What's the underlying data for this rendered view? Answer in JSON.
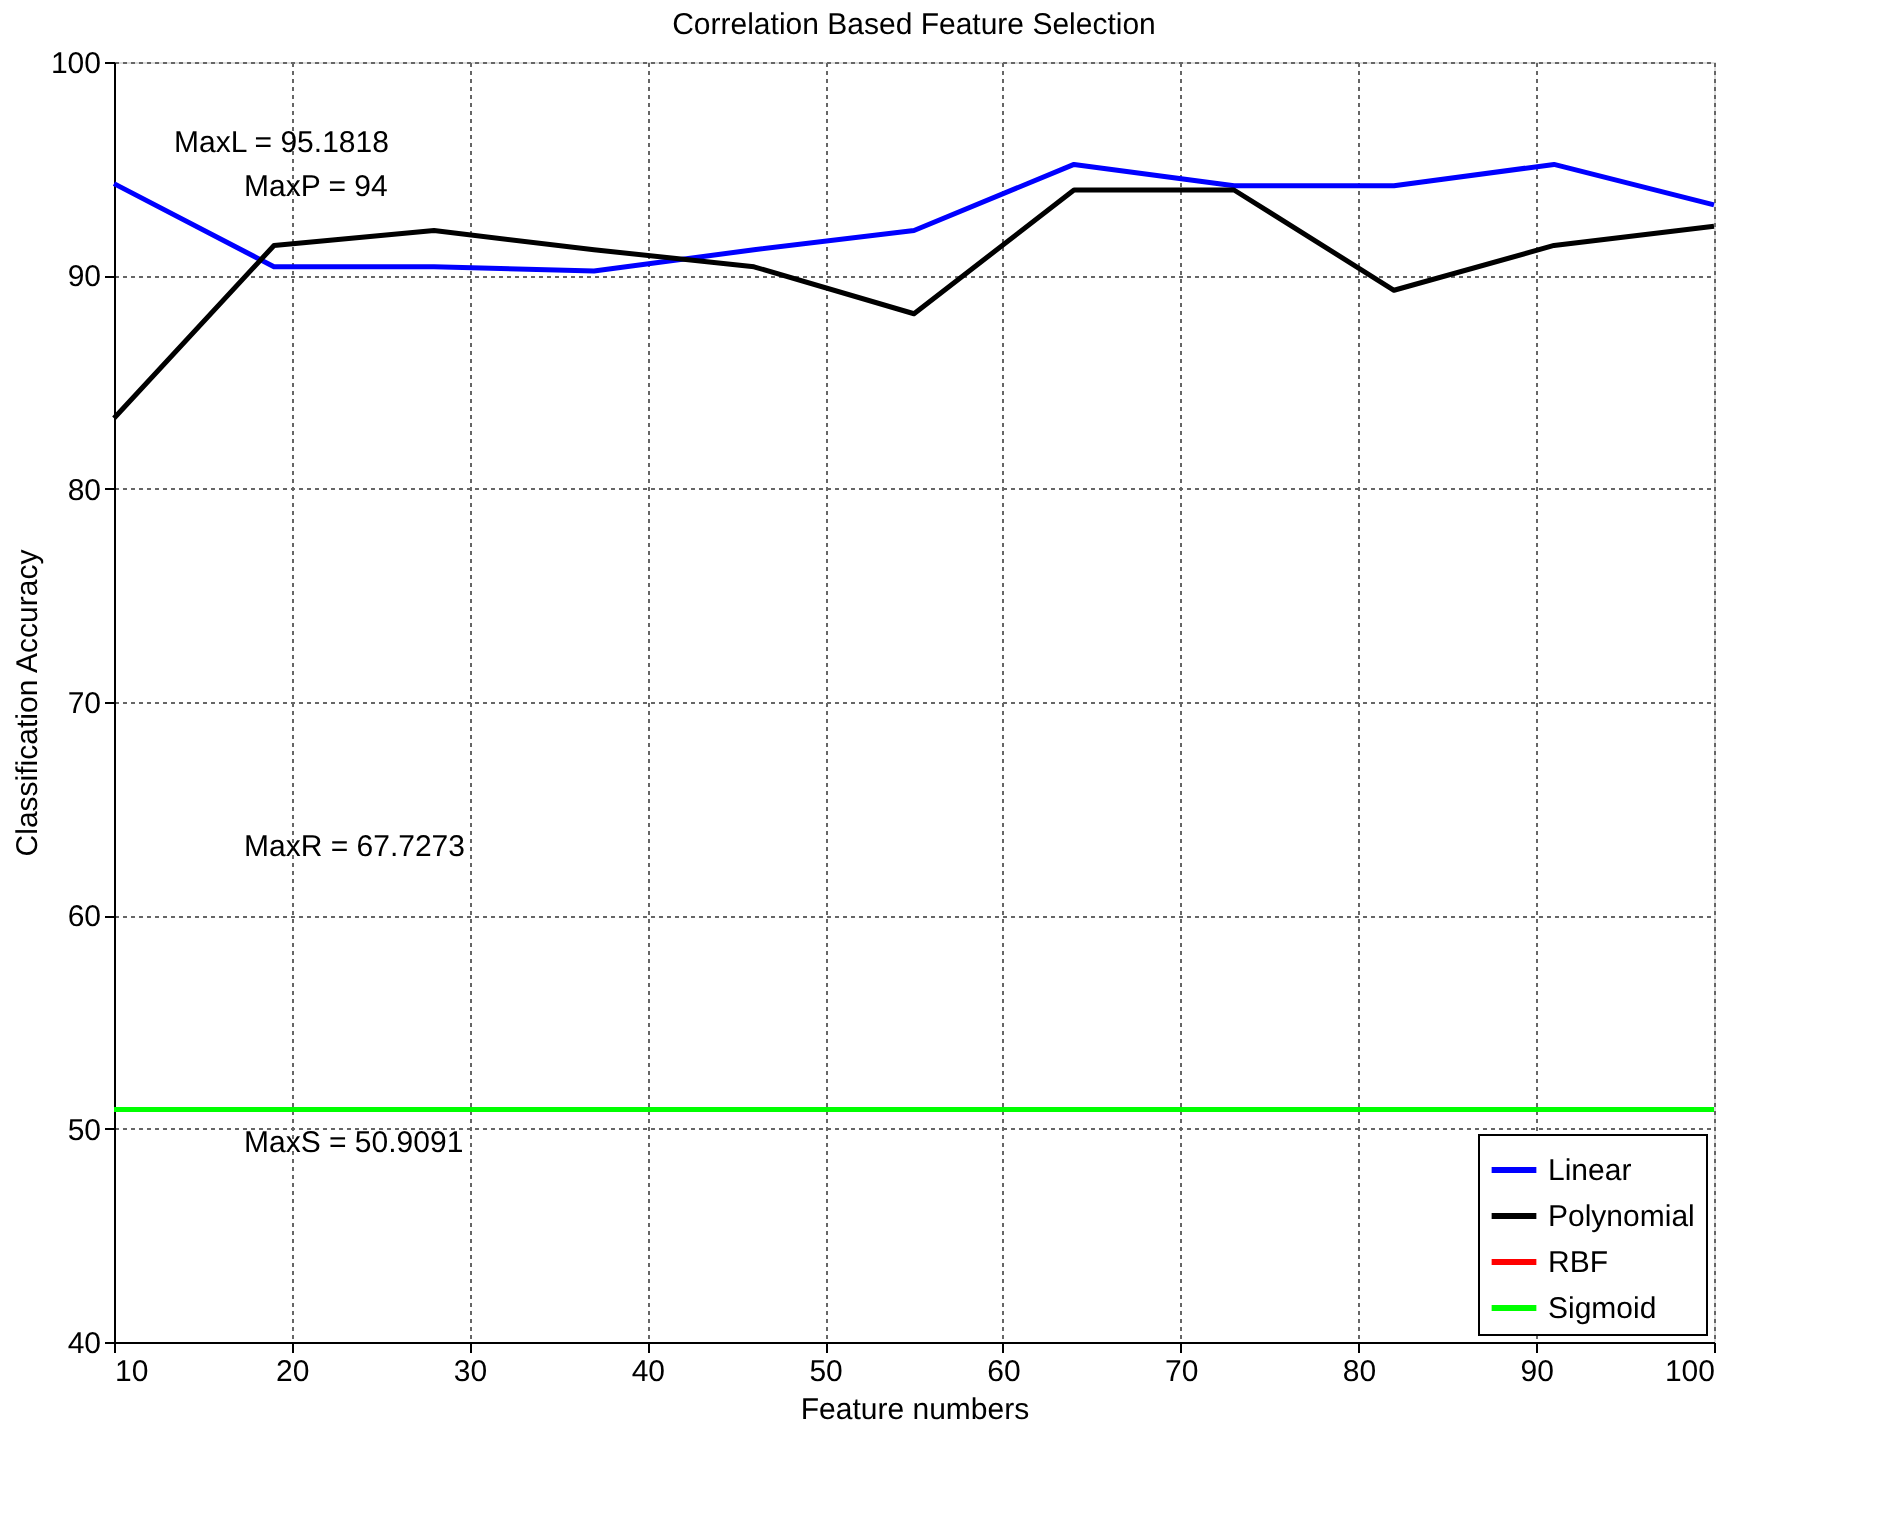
{
  "chart_data": {
    "type": "line",
    "title": "Correlation Based Feature Selection",
    "xlabel": "Feature numbers",
    "ylabel": "Classification Accuracy",
    "x": [
      10,
      19,
      28,
      37,
      46,
      55,
      64,
      73,
      82,
      91,
      100
    ],
    "series": [
      {
        "name": "Linear",
        "color": "#0000ff",
        "values": [
          94.3,
          90.4,
          90.4,
          90.2,
          91.2,
          92.1,
          95.2,
          94.2,
          94.2,
          95.2,
          93.3
        ]
      },
      {
        "name": "Polynomial",
        "color": "#000000",
        "values": [
          83.3,
          91.4,
          92.1,
          91.2,
          90.4,
          88.2,
          94.0,
          94.0,
          89.3,
          91.4,
          92.3
        ]
      },
      {
        "name": "RBF",
        "color": "#ff0000",
        "values": [
          null,
          null,
          null,
          null,
          null,
          null,
          null,
          null,
          null,
          null,
          null
        ]
      },
      {
        "name": "Sigmoid",
        "color": "#00ff00",
        "values": [
          50.9,
          50.9,
          50.9,
          50.9,
          50.9,
          50.9,
          50.9,
          50.9,
          50.9,
          50.9,
          50.9
        ]
      }
    ],
    "xlim": [
      10,
      100
    ],
    "xticks": [
      10,
      20,
      30,
      40,
      50,
      60,
      70,
      80,
      90,
      100
    ],
    "ylim": [
      40,
      100
    ],
    "yticks": [
      40,
      50,
      60,
      70,
      80,
      90,
      100
    ],
    "annotations": [
      "MaxL = 95.1818",
      "MaxP = 94",
      "MaxR = 67.7273",
      "MaxS = 50.9091"
    ],
    "grid": true,
    "legend": "bottom right",
    "line_style": "solid",
    "marker": "none"
  }
}
